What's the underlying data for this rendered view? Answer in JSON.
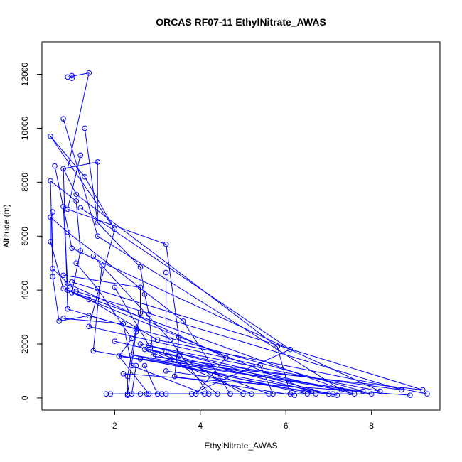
{
  "chart_data": {
    "type": "line",
    "title": "ORCAS RF07-11 EthylNitrate_AWAS",
    "xlabel": "EthylNitrate_AWAS",
    "ylabel": "Altitude (m)",
    "xlim": [
      0.3,
      9.6
    ],
    "ylim": [
      -450,
      13200
    ],
    "x_ticks": [
      2,
      4,
      6,
      8
    ],
    "x_tick_labels": [
      "2",
      "4",
      "6",
      "8"
    ],
    "y_ticks": [
      0,
      2000,
      4000,
      6000,
      8000,
      10000,
      12000
    ],
    "y_tick_labels": [
      "0",
      "2000",
      "4000",
      "6000",
      "8000",
      "10000",
      "12000"
    ],
    "grid": false,
    "legend": "none",
    "color": "#0000ff",
    "series": [
      {
        "points": [
          [
            1.4,
            12050
          ],
          [
            0.9,
            11900
          ],
          [
            1.0,
            11850
          ],
          [
            1.0,
            11950
          ],
          [
            1.3,
            10000
          ],
          [
            0.8,
            10350
          ],
          [
            0.5,
            9700
          ],
          [
            1.2,
            9000
          ],
          [
            1.6,
            8750
          ],
          [
            0.6,
            8600
          ],
          [
            0.8,
            8500
          ],
          [
            1.3,
            8200
          ],
          [
            0.5,
            8050
          ],
          [
            1.1,
            7550
          ],
          [
            1.1,
            7300
          ],
          [
            0.8,
            7100
          ],
          [
            1.2,
            7050
          ],
          [
            0.9,
            7000
          ],
          [
            0.55,
            6900
          ],
          [
            0.5,
            6700
          ],
          [
            1.6,
            6500
          ],
          [
            2.0,
            6250
          ],
          [
            0.9,
            6150
          ],
          [
            1.6,
            6000
          ],
          [
            0.5,
            5800
          ],
          [
            3.2,
            5700
          ],
          [
            1.0,
            5550
          ],
          [
            1.2,
            5450
          ],
          [
            1.5,
            5250
          ],
          [
            1.1,
            5000
          ],
          [
            1.7,
            4900
          ],
          [
            2.6,
            4850
          ],
          [
            0.55,
            4800
          ],
          [
            3.2,
            4650
          ],
          [
            0.8,
            4550
          ],
          [
            0.55,
            4500
          ],
          [
            1.0,
            4300
          ],
          [
            0.9,
            4250
          ],
          [
            2.6,
            4100
          ],
          [
            2.0,
            4100
          ],
          [
            0.8,
            4050
          ],
          [
            1.6,
            4050
          ],
          [
            0.9,
            4000
          ],
          [
            1.1,
            3950
          ],
          [
            1.0,
            3900
          ],
          [
            2.7,
            3850
          ],
          [
            1.4,
            3650
          ],
          [
            0.9,
            3300
          ],
          [
            2.6,
            3150
          ],
          [
            2.8,
            3100
          ],
          [
            1.4,
            3050
          ],
          [
            0.8,
            2950
          ],
          [
            3.6,
            2850
          ],
          [
            0.7,
            2850
          ],
          [
            2.2,
            2750
          ],
          [
            1.4,
            2650
          ],
          [
            2.5,
            2550
          ],
          [
            2.5,
            2450
          ],
          [
            3.5,
            2250
          ],
          [
            2.4,
            2200
          ],
          [
            3.3,
            2150
          ],
          [
            3.0,
            2150
          ],
          [
            2.0,
            2100
          ],
          [
            2.6,
            2000
          ],
          [
            2.8,
            1950
          ],
          [
            5.8,
            1900
          ],
          [
            6.1,
            1800
          ],
          [
            2.7,
            1800
          ],
          [
            2.8,
            1800
          ],
          [
            1.5,
            1750
          ],
          [
            3.2,
            1700
          ],
          [
            2.4,
            1600
          ],
          [
            2.1,
            1550
          ],
          [
            3.5,
            1550
          ],
          [
            2.9,
            1550
          ],
          [
            4.6,
            1500
          ],
          [
            2.6,
            1450
          ],
          [
            5.4,
            1200
          ],
          [
            2.5,
            1200
          ],
          [
            2.4,
            1200
          ],
          [
            2.7,
            1200
          ],
          [
            3.2,
            1000
          ],
          [
            2.2,
            900
          ],
          [
            2.3,
            800
          ],
          [
            3.4,
            800
          ],
          [
            9.2,
            300
          ],
          [
            8.7,
            300
          ],
          [
            7.3,
            300
          ],
          [
            7.8,
            250
          ],
          [
            8.2,
            250
          ],
          [
            6.6,
            250
          ],
          [
            7.5,
            200
          ],
          [
            9.3,
            150
          ],
          [
            7.6,
            150
          ],
          [
            7.0,
            150
          ],
          [
            3.1,
            150
          ],
          [
            2.3,
            150
          ],
          [
            1.8,
            150
          ],
          [
            6.1,
            150
          ],
          [
            3.8,
            150
          ],
          [
            4.2,
            150
          ],
          [
            5.2,
            150
          ],
          [
            5.6,
            150
          ],
          [
            7.1,
            150
          ],
          [
            4.7,
            150
          ],
          [
            6.5,
            150
          ],
          [
            2.8,
            150
          ],
          [
            1.9,
            150
          ],
          [
            3.2,
            150
          ],
          [
            4.4,
            150
          ],
          [
            2.6,
            150
          ],
          [
            3.9,
            150
          ],
          [
            5.0,
            150
          ],
          [
            8.0,
            150
          ],
          [
            6.7,
            150
          ],
          [
            5.7,
            150
          ],
          [
            4.1,
            150
          ],
          [
            2.4,
            150
          ],
          [
            3.0,
            150
          ],
          [
            7.2,
            100
          ],
          [
            8.9,
            100
          ],
          [
            6.2,
            100
          ],
          [
            2.3,
            100
          ],
          [
            4.7,
            150
          ],
          [
            2.75,
            150
          ]
        ]
      }
    ],
    "segments": [
      [
        1.4,
        12050,
        0.9,
        11900
      ],
      [
        1.0,
        11850,
        1.0,
        11950
      ],
      [
        1.4,
        12050,
        0.9,
        8500
      ],
      [
        0.8,
        10350,
        1.6,
        6000
      ],
      [
        1.3,
        10000,
        1.6,
        6500
      ],
      [
        0.5,
        9700,
        1.3,
        8200
      ],
      [
        0.5,
        9700,
        2.0,
        6250
      ],
      [
        1.2,
        9000,
        0.9,
        7000
      ],
      [
        1.6,
        8750,
        0.8,
        8500
      ],
      [
        1.6,
        8750,
        1.6,
        6500
      ],
      [
        0.6,
        8600,
        1.0,
        5550
      ],
      [
        0.8,
        8500,
        1.1,
        7550
      ],
      [
        0.8,
        8500,
        0.9,
        3300
      ],
      [
        1.3,
        8200,
        2.0,
        6250
      ],
      [
        0.5,
        8050,
        1.1,
        7300
      ],
      [
        0.5,
        8050,
        0.55,
        4800
      ],
      [
        1.1,
        7550,
        5.8,
        1900
      ],
      [
        1.1,
        7300,
        1.2,
        5450
      ],
      [
        0.8,
        7100,
        0.9,
        4250
      ],
      [
        1.2,
        7050,
        6.1,
        1800
      ],
      [
        0.9,
        7000,
        3.2,
        5700
      ],
      [
        0.55,
        6900,
        0.55,
        4500
      ],
      [
        0.5,
        6700,
        0.9,
        6150
      ],
      [
        0.5,
        6700,
        0.5,
        5800
      ],
      [
        1.6,
        6500,
        2.6,
        4850
      ],
      [
        2.0,
        6250,
        1.4,
        2650
      ],
      [
        0.9,
        6150,
        3.6,
        2850
      ],
      [
        1.6,
        6000,
        7.3,
        300
      ],
      [
        0.5,
        5800,
        0.8,
        4050
      ],
      [
        3.2,
        5700,
        3.5,
        2250
      ],
      [
        1.0,
        5550,
        8.2,
        250
      ],
      [
        1.2,
        5450,
        1.0,
        3900
      ],
      [
        1.5,
        5250,
        3.3,
        2150
      ],
      [
        1.1,
        5000,
        1.6,
        4050
      ],
      [
        1.7,
        4900,
        1.5,
        1750
      ],
      [
        2.6,
        4850,
        2.7,
        3850
      ],
      [
        0.55,
        4800,
        1.1,
        3950
      ],
      [
        3.2,
        4650,
        3.2,
        1700
      ],
      [
        0.8,
        4550,
        2.6,
        4100
      ],
      [
        0.55,
        4500,
        0.7,
        2850
      ],
      [
        1.0,
        4300,
        9.2,
        300
      ],
      [
        0.9,
        4250,
        4.6,
        1500
      ],
      [
        2.6,
        4100,
        2.6,
        3150
      ],
      [
        2.0,
        4100,
        2.8,
        1950
      ],
      [
        0.8,
        4050,
        7.5,
        200
      ],
      [
        1.6,
        4050,
        2.4,
        2200
      ],
      [
        0.9,
        4000,
        1.4,
        3650
      ],
      [
        1.1,
        3950,
        8.7,
        300
      ],
      [
        1.0,
        3900,
        6.6,
        250
      ],
      [
        2.7,
        3850,
        2.8,
        3100
      ],
      [
        1.4,
        3650,
        3.0,
        2150
      ],
      [
        0.9,
        3300,
        2.5,
        2550
      ],
      [
        2.6,
        3150,
        2.5,
        2450
      ],
      [
        2.8,
        3100,
        2.9,
        1550
      ],
      [
        1.4,
        3050,
        7.8,
        250
      ],
      [
        0.8,
        2950,
        2.2,
        2750
      ],
      [
        3.6,
        2850,
        4.7,
        150
      ],
      [
        0.7,
        2850,
        1.4,
        3050
      ],
      [
        2.2,
        2750,
        2.4,
        1200
      ],
      [
        1.4,
        2650,
        5.4,
        1200
      ],
      [
        2.5,
        2550,
        2.3,
        800
      ],
      [
        2.5,
        2450,
        2.3,
        150
      ],
      [
        3.5,
        2250,
        3.4,
        800
      ],
      [
        2.4,
        2200,
        2.1,
        1550
      ],
      [
        3.3,
        2150,
        4.2,
        150
      ],
      [
        3.0,
        2150,
        9.3,
        150
      ],
      [
        2.0,
        2100,
        3.5,
        1550
      ],
      [
        2.6,
        2000,
        7.6,
        150
      ],
      [
        2.8,
        1950,
        7.0,
        150
      ],
      [
        5.8,
        1900,
        6.1,
        150
      ],
      [
        6.1,
        1800,
        3.8,
        150
      ],
      [
        2.7,
        1800,
        5.2,
        150
      ],
      [
        2.8,
        1800,
        5.6,
        150
      ],
      [
        1.5,
        1750,
        7.1,
        150
      ],
      [
        3.2,
        1700,
        4.4,
        150
      ],
      [
        2.4,
        1600,
        6.5,
        150
      ],
      [
        2.1,
        1550,
        2.8,
        150
      ],
      [
        3.5,
        1550,
        5.0,
        150
      ],
      [
        2.9,
        1550,
        8.0,
        150
      ],
      [
        4.6,
        1500,
        3.9,
        150
      ],
      [
        2.6,
        1450,
        6.7,
        150
      ],
      [
        5.4,
        1200,
        5.7,
        150
      ],
      [
        2.5,
        1200,
        2.4,
        150
      ],
      [
        2.4,
        1200,
        4.1,
        150
      ],
      [
        2.7,
        1200,
        3.0,
        150
      ],
      [
        3.2,
        1000,
        7.2,
        100
      ],
      [
        2.2,
        900,
        8.9,
        100
      ],
      [
        2.3,
        800,
        2.3,
        100
      ],
      [
        3.4,
        800,
        6.2,
        100
      ],
      [
        2.6,
        1450,
        9.2,
        300
      ],
      [
        2.9,
        1550,
        8.7,
        300
      ],
      [
        2.4,
        1600,
        7.3,
        300
      ],
      [
        2.1,
        1550,
        7.8,
        250
      ],
      [
        2.6,
        2000,
        8.2,
        250
      ],
      [
        2.8,
        1800,
        6.6,
        250
      ],
      [
        1.8,
        150,
        3.1,
        150
      ],
      [
        3.1,
        150,
        1.9,
        150
      ],
      [
        2.3,
        150,
        4.7,
        150
      ],
      [
        4.7,
        150,
        6.5,
        150
      ],
      [
        2.75,
        150,
        3.2,
        150
      ],
      [
        2.6,
        150,
        4.4,
        150
      ],
      [
        4.2,
        150,
        5.2,
        150
      ],
      [
        3.8,
        150,
        5.6,
        150
      ],
      [
        2.4,
        150,
        3.9,
        150
      ],
      [
        3.0,
        150,
        5.0,
        150
      ],
      [
        4.1,
        150,
        7.1,
        150
      ],
      [
        5.7,
        150,
        6.7,
        150
      ],
      [
        7.0,
        150,
        8.0,
        150
      ],
      [
        6.1,
        150,
        7.6,
        150
      ]
    ]
  }
}
